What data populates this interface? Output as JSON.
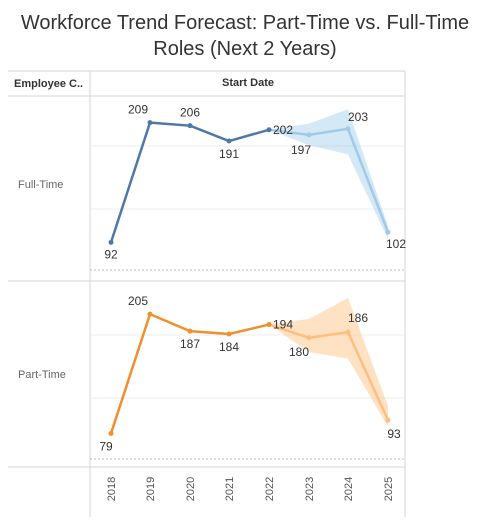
{
  "title_line1": "Workforce Trend Forecast: Part-Time vs. Full-Time",
  "title_line2": "Roles (Next 2 Years)",
  "row_header": "Employee C..",
  "col_header": "Start Date",
  "chart_data": {
    "type": "line",
    "title": "Workforce Trend Forecast: Part-Time vs. Full-Time Roles (Next 2 Years)",
    "x": [
      "2018",
      "2019",
      "2020",
      "2021",
      "2022",
      "2023",
      "2024",
      "2025"
    ],
    "panels": [
      {
        "name": "Full-Time",
        "color": "#4e79a7",
        "forecast_color": "#a0cbe8",
        "actual": [
          92,
          209,
          206,
          191,
          202
        ],
        "forecast": [
          202,
          197,
          203,
          102
        ],
        "forecast_band": {
          "low": [
            202,
            187,
            178,
            95
          ],
          "high": [
            202,
            208,
            222,
            108
          ]
        },
        "yrange": [
          65,
          235
        ]
      },
      {
        "name": "Part-Time",
        "color": "#f28e2b",
        "forecast_color": "#ffbe7d",
        "actual": [
          79,
          205,
          187,
          184,
          194
        ],
        "forecast": [
          194,
          180,
          186,
          93
        ],
        "forecast_band": {
          "low": [
            194,
            165,
            158,
            86
          ],
          "high": [
            194,
            200,
            222,
            108
          ]
        },
        "yrange": [
          52,
          240
        ]
      }
    ]
  }
}
